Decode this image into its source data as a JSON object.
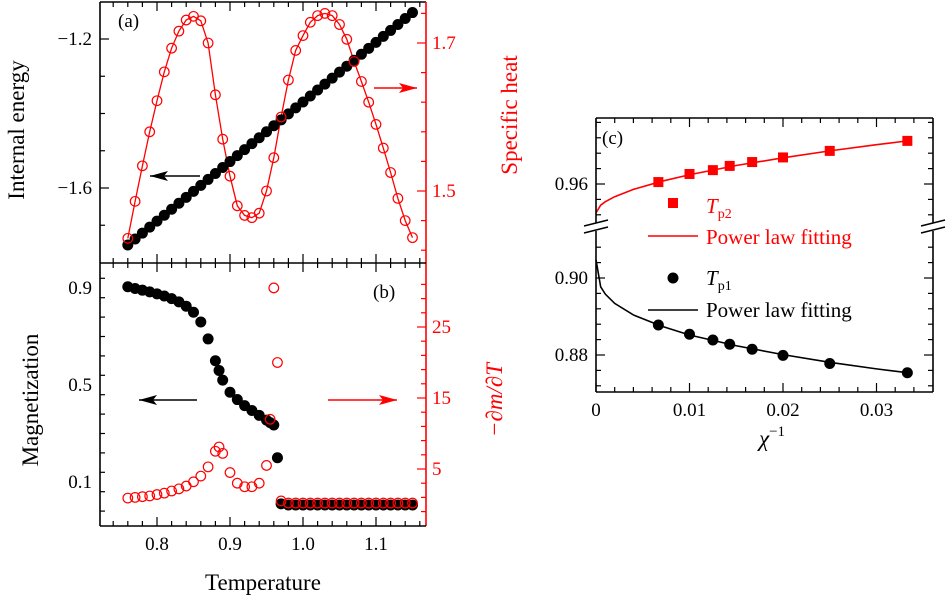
{
  "colors": {
    "black": "#000000",
    "red": "#ff0000"
  },
  "chart_data": [
    {
      "panel_label": "(a)",
      "type": "scatter",
      "xlabel": "",
      "xlim": [
        0.722,
        1.168
      ],
      "xticks": [
        0.8,
        0.9,
        1.0,
        1.1
      ],
      "ylabel_left": "Internal energy",
      "ylabel_right": "Specific heat",
      "yticks_left": [
        "-1.2",
        "-1.6"
      ],
      "yticks_right": [
        "1.7",
        "1.5"
      ],
      "x": [
        0.76,
        0.77,
        0.78,
        0.79,
        0.8,
        0.81,
        0.82,
        0.83,
        0.84,
        0.85,
        0.86,
        0.87,
        0.88,
        0.89,
        0.9,
        0.91,
        0.92,
        0.93,
        0.94,
        0.95,
        0.96,
        0.97,
        0.98,
        0.99,
        1.0,
        1.01,
        1.02,
        1.03,
        1.04,
        1.05,
        1.06,
        1.07,
        1.08,
        1.09,
        1.1,
        1.11,
        1.12,
        1.13,
        1.14,
        1.15
      ],
      "series": [
        {
          "axis": "left",
          "color": "#000000",
          "marker": "filled-circle",
          "values": [
            -1.753,
            -1.737,
            -1.721,
            -1.705,
            -1.689,
            -1.673,
            -1.657,
            -1.641,
            -1.625,
            -1.609,
            -1.593,
            -1.577,
            -1.561,
            -1.545,
            -1.529,
            -1.513,
            -1.497,
            -1.481,
            -1.465,
            -1.449,
            -1.433,
            -1.417,
            -1.401,
            -1.385,
            -1.369,
            -1.353,
            -1.337,
            -1.321,
            -1.305,
            -1.289,
            -1.273,
            -1.257,
            -1.241,
            -1.225,
            -1.209,
            -1.193,
            -1.177,
            -1.161,
            -1.145,
            -1.129
          ]
        },
        {
          "axis": "right",
          "color": "#ff0000",
          "marker": "open-circle-line",
          "values": [
            1.436,
            1.486,
            1.534,
            1.58,
            1.622,
            1.661,
            1.693,
            1.716,
            1.731,
            1.736,
            1.73,
            1.7,
            1.63,
            1.57,
            1.52,
            1.48,
            1.467,
            1.464,
            1.47,
            1.5,
            1.545,
            1.6,
            1.65,
            1.69,
            1.71,
            1.728,
            1.737,
            1.74,
            1.737,
            1.725,
            1.705,
            1.675,
            1.648,
            1.62,
            1.59,
            1.558,
            1.525,
            1.49,
            1.46,
            1.437
          ]
        }
      ]
    },
    {
      "panel_label": "(b)",
      "type": "scatter",
      "xlabel": "Temperature",
      "xlim": [
        0.722,
        1.168
      ],
      "xticks": [
        0.8,
        0.9,
        1.0,
        1.1
      ],
      "xtick_labels": [
        "0.8",
        "0.9",
        "1.0",
        "1.1"
      ],
      "ylabel_left": "Magnetization",
      "ylabel_right": "−∂m/∂T",
      "yticks_left": [
        "0.9",
        "0.5",
        "0.1"
      ],
      "yticks_right": [
        "25",
        "15",
        "5"
      ],
      "x": [
        0.76,
        0.77,
        0.78,
        0.79,
        0.8,
        0.81,
        0.82,
        0.83,
        0.84,
        0.85,
        0.86,
        0.87,
        0.88,
        0.885,
        0.89,
        0.9,
        0.91,
        0.92,
        0.93,
        0.94,
        0.95,
        0.955,
        0.96,
        0.965,
        0.97,
        0.98,
        0.99,
        1.0,
        1.01,
        1.02,
        1.03,
        1.04,
        1.05,
        1.06,
        1.07,
        1.08,
        1.09,
        1.1,
        1.11,
        1.12,
        1.13,
        1.14,
        1.15
      ],
      "series": [
        {
          "axis": "left",
          "color": "#000000",
          "marker": "filled-circle",
          "values": [
            0.905,
            0.898,
            0.891,
            0.884,
            0.876,
            0.867,
            0.856,
            0.843,
            0.825,
            0.8,
            0.76,
            0.69,
            0.6,
            0.56,
            0.52,
            0.47,
            0.44,
            0.415,
            0.395,
            0.375,
            0.355,
            0.345,
            0.335,
            0.2,
            0.01,
            0.005,
            0.005,
            0.005,
            0.005,
            0.005,
            0.005,
            0.005,
            0.005,
            0.005,
            0.005,
            0.005,
            0.005,
            0.005,
            0.005,
            0.005,
            0.005,
            0.005,
            0.005
          ]
        },
        {
          "axis": "right",
          "color": "#ff0000",
          "marker": "open-circle",
          "values": [
            0.9,
            1.0,
            1.1,
            1.2,
            1.4,
            1.6,
            1.9,
            2.2,
            2.6,
            3.2,
            4.0,
            5.3,
            7.5,
            8.1,
            7.2,
            4.5,
            3.0,
            2.5,
            2.5,
            3.0,
            5.5,
            12,
            30.5,
            20,
            0.5,
            0.2,
            0.2,
            0.2,
            0.2,
            0.2,
            0.2,
            0.2,
            0.2,
            0.2,
            0.2,
            0.2,
            0.2,
            0.2,
            0.2,
            0.2,
            0.2,
            0.2,
            0.2
          ]
        }
      ]
    },
    {
      "panel_label": "(c)",
      "type": "scatter",
      "xlabel": "χ",
      "xlabel_sup": "−1",
      "xlim": [
        0,
        0.036
      ],
      "xticks": [
        0,
        0.01,
        0.02,
        0.03
      ],
      "xtick_labels": [
        "0",
        "0.01",
        "0.02",
        "0.03"
      ],
      "y_axis_break": true,
      "ylim_upper": [
        0.9488,
        0.9771
      ],
      "ylim_lower": [
        0.8704,
        0.9132
      ],
      "yticks": [
        "0.96",
        "0.90",
        "0.88"
      ],
      "legend": [
        {
          "label": "T",
          "sub": "p2",
          "color": "#ff0000",
          "marker": "square"
        },
        {
          "label": "Power law fitting",
          "color": "#ff0000",
          "marker": "line"
        },
        {
          "label": "T",
          "sub": "p1",
          "color": "#000000",
          "marker": "circle"
        },
        {
          "label": "Power law fitting",
          "color": "#000000",
          "marker": "line"
        }
      ],
      "x": [
        0.00667,
        0.01,
        0.0125,
        0.0143,
        0.0167,
        0.02,
        0.025,
        0.0333
      ],
      "series": [
        {
          "color": "#ff0000",
          "segment": "upper",
          "values": [
            0.9605,
            0.9626,
            0.9636,
            0.9647,
            0.9657,
            0.9669,
            0.9686,
            0.9712
          ]
        },
        {
          "color": "#000000",
          "segment": "lower",
          "values": [
            0.8878,
            0.8854,
            0.8839,
            0.8828,
            0.8815,
            0.8799,
            0.8778,
            0.8754
          ]
        }
      ],
      "fits": {
        "x": [
          0,
          0.0005,
          0.001,
          0.002,
          0.004,
          0.007,
          0.01,
          0.015,
          0.02,
          0.025,
          0.03,
          0.0333
        ],
        "upper": [
          0.9525,
          0.9545,
          0.9554,
          0.9567,
          0.9586,
          0.9607,
          0.9624,
          0.9648,
          0.9668,
          0.9686,
          0.9702,
          0.9712
        ],
        "lower": [
          0.9047,
          0.8977,
          0.8958,
          0.8934,
          0.8904,
          0.8875,
          0.8852,
          0.8824,
          0.8801,
          0.8781,
          0.8764,
          0.8754
        ]
      }
    }
  ]
}
